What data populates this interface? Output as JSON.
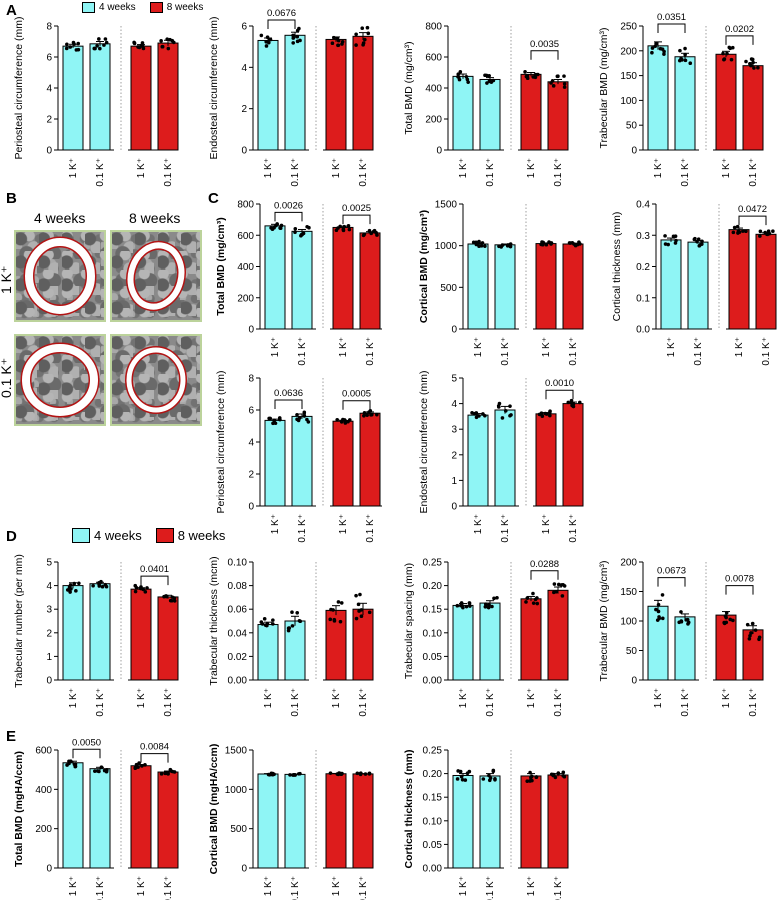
{
  "panel_letters": {
    "A": "A",
    "B": "B",
    "C": "C",
    "D": "D",
    "E": "E"
  },
  "legend_A": {
    "items": [
      {
        "label": "4 weeks",
        "color": "#8ff5f5"
      },
      {
        "label": "8 weeks",
        "color": "#dd1c1c"
      }
    ]
  },
  "legend_D": {
    "items": [
      {
        "label": "4 weeks",
        "color": "#8ff5f5"
      },
      {
        "label": "8 weeks",
        "color": "#dd1c1c"
      }
    ]
  },
  "panel_B": {
    "columns": [
      "4 weeks",
      "8 weeks"
    ],
    "rows": [
      "1 K⁺",
      "0.1 K⁺"
    ]
  },
  "colors": {
    "four_weeks": "#8ff5f5",
    "eight_weeks": "#dd1c1c",
    "axis": "#000000"
  },
  "chart_data": [
    {
      "id": "A1",
      "type": "bar",
      "ylabel": "Periosteal circumference (mm)",
      "ylim": [
        0,
        8
      ],
      "yticks": [
        "0",
        "2",
        "4",
        "6",
        "8"
      ],
      "categories": [
        "1 K⁺",
        "0.1 K⁺",
        "1 K⁺",
        "0.1 K⁺"
      ],
      "values": [
        6.7,
        6.85,
        6.7,
        6.9
      ],
      "errors": [
        0.12,
        0.15,
        0.1,
        0.18
      ],
      "groups": [
        "4 weeks",
        "4 weeks",
        "8 weeks",
        "8 weeks"
      ],
      "brackets": []
    },
    {
      "id": "A2",
      "type": "bar",
      "ylabel": "Endosteal circumference (mm)",
      "ylim": [
        0,
        6
      ],
      "yticks": [
        "0",
        "2",
        "4",
        "6"
      ],
      "categories": [
        "1 K⁺",
        "0.1 K⁺",
        "1 K⁺",
        "0.1 K⁺"
      ],
      "values": [
        5.3,
        5.55,
        5.35,
        5.5
      ],
      "errors": [
        0.12,
        0.15,
        0.12,
        0.18
      ],
      "groups": [
        "4 weeks",
        "4 weeks",
        "8 weeks",
        "8 weeks"
      ],
      "brackets": [
        {
          "bars": [
            0,
            1
          ],
          "label": "0.0676"
        }
      ]
    },
    {
      "id": "A3",
      "type": "bar",
      "ylabel": "Total BMD (mg/cm³)",
      "ylim": [
        0,
        800
      ],
      "yticks": [
        "0",
        "200",
        "400",
        "600",
        "800"
      ],
      "categories": [
        "1 K⁺",
        "0.1 K⁺",
        "1 K⁺",
        "0.1 K⁺"
      ],
      "values": [
        475,
        455,
        488,
        440
      ],
      "errors": [
        15,
        12,
        12,
        15
      ],
      "groups": [
        "4 weeks",
        "4 weeks",
        "8 weeks",
        "8 weeks"
      ],
      "brackets": [
        {
          "bars": [
            2,
            3
          ],
          "label": "0.0035"
        }
      ]
    },
    {
      "id": "A4",
      "type": "bar",
      "ylabel": "Trabecular BMD (mg/cm³)",
      "ylim": [
        0,
        250
      ],
      "yticks": [
        "0",
        "50",
        "100",
        "150",
        "200",
        "250"
      ],
      "categories": [
        "1 K⁺",
        "0.1 K⁺",
        "1 K⁺",
        "0.1 K⁺"
      ],
      "values": [
        210,
        188,
        193,
        170
      ],
      "errors": [
        8,
        7,
        6,
        6
      ],
      "groups": [
        "4 weeks",
        "4 weeks",
        "8 weeks",
        "8 weeks"
      ],
      "brackets": [
        {
          "bars": [
            0,
            1
          ],
          "label": "0.0351"
        },
        {
          "bars": [
            2,
            3
          ],
          "label": "0.0202"
        }
      ]
    },
    {
      "id": "C1",
      "type": "bar",
      "ylabel": "Total BMD (mg/cm³)",
      "ylabel_bold": true,
      "ylim": [
        0,
        800
      ],
      "yticks": [
        "0",
        "200",
        "400",
        "600",
        "800"
      ],
      "categories": [
        "1 K⁺",
        "0.1 K⁺",
        "1 K⁺",
        "0.1 K⁺"
      ],
      "values": [
        660,
        625,
        650,
        615
      ],
      "errors": [
        10,
        12,
        8,
        8
      ],
      "groups": [
        "4 weeks",
        "4 weeks",
        "8 weeks",
        "8 weeks"
      ],
      "brackets": [
        {
          "bars": [
            0,
            1
          ],
          "label": "0.0026"
        },
        {
          "bars": [
            2,
            3
          ],
          "label": "0.0025"
        }
      ]
    },
    {
      "id": "C2",
      "type": "bar",
      "ylabel": "Cortical BMD (mg/cm³)",
      "ylabel_bold": true,
      "ylim": [
        0,
        1500
      ],
      "yticks": [
        "0",
        "500",
        "1000",
        "1500"
      ],
      "categories": [
        "1 K⁺",
        "0.1 K⁺",
        "1 K⁺",
        "0.1 K⁺"
      ],
      "values": [
        1020,
        1010,
        1025,
        1020
      ],
      "errors": [
        12,
        10,
        8,
        10
      ],
      "groups": [
        "4 weeks",
        "4 weeks",
        "8 weeks",
        "8 weeks"
      ],
      "brackets": []
    },
    {
      "id": "C3",
      "type": "bar",
      "ylabel": "Cortical thickness (mm)",
      "ylim": [
        0,
        0.4
      ],
      "yticks": [
        "0.0",
        "0.1",
        "0.2",
        "0.3",
        "0.4"
      ],
      "categories": [
        "1 K⁺",
        "0.1 K⁺",
        "1 K⁺",
        "0.1 K⁺"
      ],
      "values": [
        0.285,
        0.278,
        0.318,
        0.303
      ],
      "errors": [
        0.006,
        0.005,
        0.005,
        0.005
      ],
      "groups": [
        "4 weeks",
        "4 weeks",
        "8 weeks",
        "8 weeks"
      ],
      "brackets": [
        {
          "bars": [
            2,
            3
          ],
          "label": "0.0472"
        }
      ]
    },
    {
      "id": "C4",
      "type": "bar",
      "ylabel": "Periosteal circumference (mm)",
      "ylim": [
        0,
        8
      ],
      "yticks": [
        "0",
        "2",
        "4",
        "6",
        "8"
      ],
      "categories": [
        "1 K⁺",
        "0.1 K⁺",
        "1 K⁺",
        "0.1 K⁺"
      ],
      "values": [
        5.35,
        5.6,
        5.3,
        5.8
      ],
      "errors": [
        0.08,
        0.15,
        0.06,
        0.08
      ],
      "groups": [
        "4 weeks",
        "4 weeks",
        "8 weeks",
        "8 weeks"
      ],
      "brackets": [
        {
          "bars": [
            0,
            1
          ],
          "label": "0.0636"
        },
        {
          "bars": [
            2,
            3
          ],
          "label": "0.0005"
        }
      ]
    },
    {
      "id": "C5",
      "type": "bar",
      "ylabel": "Endosteal circumference (mm)",
      "ylim": [
        0,
        5
      ],
      "yticks": [
        "0",
        "1",
        "2",
        "3",
        "4",
        "5"
      ],
      "categories": [
        "1 K⁺",
        "0.1 K⁺",
        "1 K⁺",
        "0.1 K⁺"
      ],
      "values": [
        3.55,
        3.75,
        3.6,
        4.0
      ],
      "errors": [
        0.06,
        0.14,
        0.05,
        0.06
      ],
      "groups": [
        "4 weeks",
        "4 weeks",
        "8 weeks",
        "8 weeks"
      ],
      "brackets": [
        {
          "bars": [
            2,
            3
          ],
          "label": "0.0010"
        }
      ]
    },
    {
      "id": "D1",
      "type": "bar",
      "ylabel": "Trabecular number (per mm)",
      "ylim": [
        0,
        5
      ],
      "yticks": [
        "0",
        "1",
        "2",
        "3",
        "4",
        "5"
      ],
      "categories": [
        "1 K⁺",
        "0.1 K⁺",
        "1 K⁺",
        "0.1 K⁺"
      ],
      "values": [
        4.0,
        4.08,
        3.85,
        3.52
      ],
      "errors": [
        0.12,
        0.06,
        0.06,
        0.07
      ],
      "groups": [
        "4 weeks",
        "4 weeks",
        "8 weeks",
        "8 weeks"
      ],
      "brackets": [
        {
          "bars": [
            2,
            3
          ],
          "label": "0.0401"
        }
      ]
    },
    {
      "id": "D2",
      "type": "bar",
      "ylabel": "Trabecular thickness (mcm)",
      "ylim": [
        0,
        0.1
      ],
      "yticks": [
        "0.00",
        "0.02",
        "0.04",
        "0.06",
        "0.08",
        "0.10"
      ],
      "categories": [
        "1 K⁺",
        "0.1 K⁺",
        "1 K⁺",
        "0.1 K⁺"
      ],
      "values": [
        0.047,
        0.05,
        0.059,
        0.06
      ],
      "errors": [
        0.002,
        0.004,
        0.004,
        0.005
      ],
      "groups": [
        "4 weeks",
        "4 weeks",
        "8 weeks",
        "8 weeks"
      ],
      "brackets": []
    },
    {
      "id": "D3",
      "type": "bar",
      "ylabel": "Trabecular spacing (mm)",
      "ylim": [
        0,
        0.25
      ],
      "yticks": [
        "0.00",
        "0.05",
        "0.10",
        "0.15",
        "0.20",
        "0.25"
      ],
      "categories": [
        "1 K⁺",
        "0.1 K⁺",
        "1 K⁺",
        "0.1 K⁺"
      ],
      "values": [
        0.158,
        0.163,
        0.172,
        0.19
      ],
      "errors": [
        0.004,
        0.005,
        0.005,
        0.007
      ],
      "groups": [
        "4 weeks",
        "4 weeks",
        "8 weeks",
        "8 weeks"
      ],
      "brackets": [
        {
          "bars": [
            2,
            3
          ],
          "label": "0.0288"
        }
      ]
    },
    {
      "id": "D4",
      "type": "bar",
      "ylabel": "Trabecular BMD (mg/cm³)",
      "ylim": [
        0,
        200
      ],
      "yticks": [
        "0",
        "50",
        "100",
        "150",
        "200"
      ],
      "categories": [
        "1 K⁺",
        "0.1 K⁺",
        "1 K⁺",
        "0.1 K⁺"
      ],
      "values": [
        125,
        107,
        110,
        85
      ],
      "errors": [
        10,
        5,
        6,
        7
      ],
      "groups": [
        "4 weeks",
        "4 weeks",
        "8 weeks",
        "8 weeks"
      ],
      "brackets": [
        {
          "bars": [
            0,
            1
          ],
          "label": "0.0673"
        },
        {
          "bars": [
            2,
            3
          ],
          "label": "0.0078"
        }
      ]
    },
    {
      "id": "E1",
      "type": "bar",
      "ylabel": "Total BMD (mgHA/ccm)",
      "ylabel_bold": true,
      "ylim": [
        0,
        600
      ],
      "yticks": [
        "0",
        "200",
        "400",
        "600"
      ],
      "categories": [
        "1 K⁺",
        "0.1 K⁺",
        "1 K⁺",
        "0.1 K⁺"
      ],
      "values": [
        535,
        505,
        520,
        488
      ],
      "errors": [
        8,
        7,
        6,
        5
      ],
      "groups": [
        "4 weeks",
        "4 weeks",
        "8 weeks",
        "8 weeks"
      ],
      "brackets": [
        {
          "bars": [
            0,
            1
          ],
          "label": "0.0050"
        },
        {
          "bars": [
            2,
            3
          ],
          "label": "0.0084"
        }
      ]
    },
    {
      "id": "E2",
      "type": "bar",
      "ylabel": "Cortical BMD (mgHA/ccm)",
      "ylabel_bold": true,
      "ylim": [
        0,
        1500
      ],
      "yticks": [
        "0",
        "500",
        "1000",
        "1500"
      ],
      "categories": [
        "1 K⁺",
        "0.1 K⁺",
        "1 K⁺",
        "0.1 K⁺"
      ],
      "values": [
        1195,
        1190,
        1198,
        1196
      ],
      "errors": [
        5,
        4,
        4,
        4
      ],
      "groups": [
        "4 weeks",
        "4 weeks",
        "8 weeks",
        "8 weeks"
      ],
      "brackets": []
    },
    {
      "id": "E3",
      "type": "bar",
      "ylabel": "Cortical thickness (mm)",
      "ylabel_bold": true,
      "ylim": [
        0,
        0.25
      ],
      "yticks": [
        "0.00",
        "0.05",
        "0.10",
        "0.15",
        "0.20",
        "0.25"
      ],
      "categories": [
        "1 K⁺",
        "0.1 K⁺",
        "1 K⁺",
        "0.1 K⁺"
      ],
      "values": [
        0.196,
        0.195,
        0.195,
        0.197
      ],
      "errors": [
        0.004,
        0.005,
        0.005,
        0.003
      ],
      "groups": [
        "4 weeks",
        "4 weeks",
        "8 weeks",
        "8 weeks"
      ],
      "brackets": []
    }
  ]
}
